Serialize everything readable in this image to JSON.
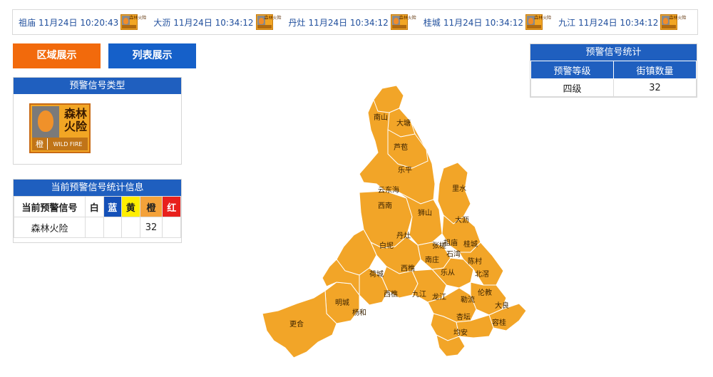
{
  "ticker": [
    {
      "town": "祖庙",
      "time": "11月24日 10:20:43",
      "icon": "forest-fire-orange-icon"
    },
    {
      "town": "大沥",
      "time": "11月24日 10:34:12",
      "icon": "forest-fire-orange-icon"
    },
    {
      "town": "丹灶",
      "time": "11月24日 10:34:12",
      "icon": "forest-fire-orange-icon"
    },
    {
      "town": "桂城",
      "time": "11月24日 10:34:12",
      "icon": "forest-fire-orange-icon"
    },
    {
      "town": "九江",
      "time": "11月24日 10:34:12",
      "icon": "forest-fire-orange-icon"
    }
  ],
  "mini_icon_text": "森林火险",
  "view_toggle": {
    "area_label": "区域展示",
    "list_label": "列表展示",
    "active": "area"
  },
  "signal_type_panel": {
    "title": "预警信号类型",
    "icon": {
      "name": "森林火险",
      "line1": "森林",
      "line2": "火险",
      "level": "橙",
      "english": "WILD FIRE",
      "color": "#f2a624"
    }
  },
  "current_stats": {
    "title": "当前预警信号统计信息",
    "headers": [
      "当前预警信号",
      "白",
      "蓝",
      "黄",
      "橙",
      "红"
    ],
    "rows": [
      {
        "signal": "森林火险",
        "white": "",
        "blue": "",
        "yellow": "",
        "orange": "32",
        "red": ""
      }
    ]
  },
  "right_stats": {
    "title": "预警信号统计",
    "headers": [
      "预警等级",
      "街镇数量"
    ],
    "rows": [
      {
        "level": "四级",
        "count": "32"
      }
    ]
  },
  "map": {
    "fill_color": "#f2a528",
    "labels": [
      "南山",
      "大塘",
      "芦苞",
      "乐平",
      "云东海",
      "里水",
      "西南",
      "狮山",
      "大沥",
      "丹灶",
      "白坭",
      "张槎",
      "祖庙",
      "桂城",
      "石湾",
      "南庄",
      "陈村",
      "北滘",
      "荷城",
      "西樵",
      "乐从",
      "明城",
      "杨和",
      "西樵",
      "九江",
      "龙江",
      "勒流",
      "伦教",
      "大良",
      "更合",
      "杏坛",
      "均安",
      "容桂"
    ]
  },
  "colors": {
    "primary_blue": "#1f5fbf",
    "orange_button": "#f26a0c",
    "map_orange": "#f2a528"
  }
}
